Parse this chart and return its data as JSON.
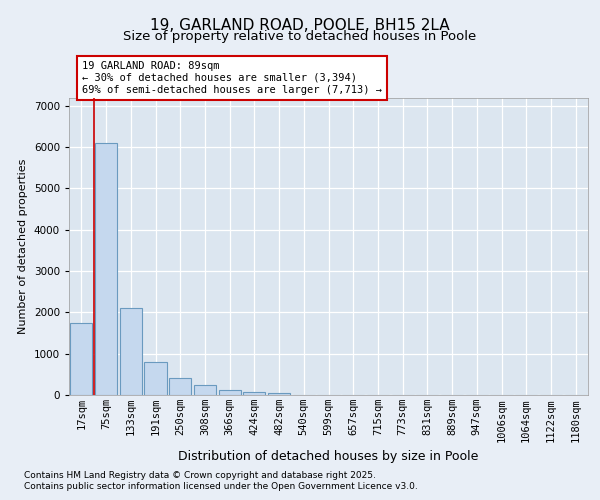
{
  "title1": "19, GARLAND ROAD, POOLE, BH15 2LA",
  "title2": "Size of property relative to detached houses in Poole",
  "xlabel": "Distribution of detached houses by size in Poole",
  "ylabel": "Number of detached properties",
  "categories": [
    "17sqm",
    "75sqm",
    "133sqm",
    "191sqm",
    "250sqm",
    "308sqm",
    "366sqm",
    "424sqm",
    "482sqm",
    "540sqm",
    "599sqm",
    "657sqm",
    "715sqm",
    "773sqm",
    "831sqm",
    "889sqm",
    "947sqm",
    "1006sqm",
    "1064sqm",
    "1122sqm",
    "1180sqm"
  ],
  "values": [
    1750,
    6100,
    2100,
    800,
    420,
    240,
    130,
    75,
    50,
    12,
    8,
    0,
    0,
    0,
    0,
    0,
    0,
    0,
    0,
    0,
    0
  ],
  "bar_color": "#c5d8ee",
  "bar_edge_color": "#6a9abf",
  "property_line_x": 0.5,
  "property_line_color": "#cc0000",
  "annotation_text": "19 GARLAND ROAD: 89sqm\n← 30% of detached houses are smaller (3,394)\n69% of semi-detached houses are larger (7,713) →",
  "annotation_box_color": "#cc0000",
  "footnote1": "Contains HM Land Registry data © Crown copyright and database right 2025.",
  "footnote2": "Contains public sector information licensed under the Open Government Licence v3.0.",
  "bg_color": "#e8eef6",
  "plot_bg_color": "#dce6f0",
  "ylim": [
    0,
    7200
  ],
  "yticks": [
    0,
    1000,
    2000,
    3000,
    4000,
    5000,
    6000,
    7000
  ],
  "grid_color": "#ffffff",
  "title1_fontsize": 11,
  "title2_fontsize": 9.5,
  "ylabel_fontsize": 8,
  "xlabel_fontsize": 9,
  "tick_fontsize": 7.5,
  "annot_fontsize": 7.5,
  "footnote_fontsize": 6.5
}
